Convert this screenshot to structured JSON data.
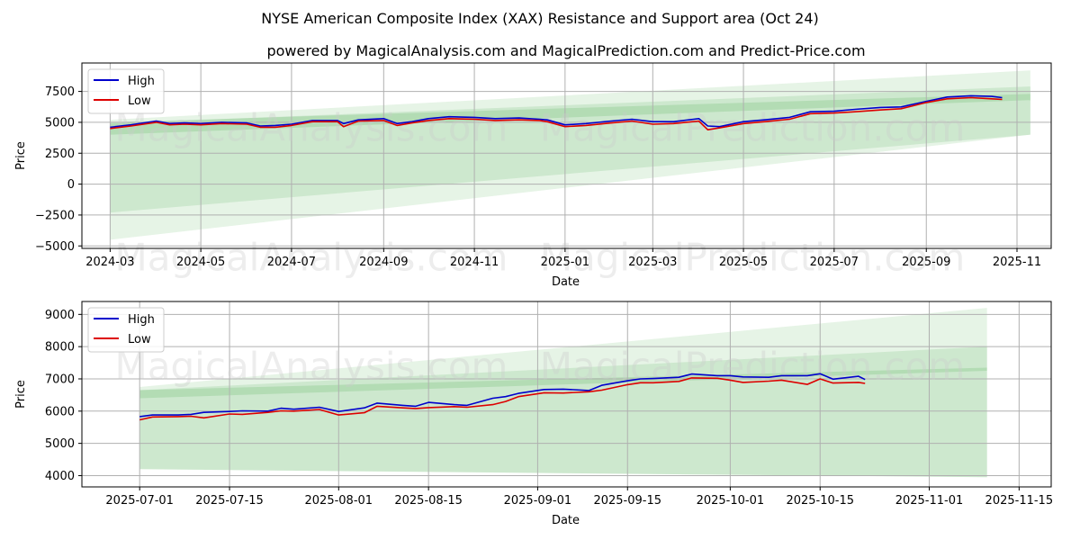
{
  "titles": {
    "main": "NYSE American Composite Index (XAX) Resistance and Support area (Oct 24)",
    "sub": "powered by MagicalAnalysis.com and MagicalPrediction.com and Predict-Price.com"
  },
  "watermarks": [
    "MagicalAnalysis.com",
    "MagicalPrediction.com"
  ],
  "colors": {
    "high": "#0000cc",
    "low": "#dd0000",
    "band": "#4caf50",
    "grid": "#b0b0b0"
  },
  "chart_data": [
    {
      "type": "line",
      "panel": "full-range",
      "xlabel": "Date",
      "ylabel": "Price",
      "xlim": [
        "2024-02-11",
        "2025-11-24"
      ],
      "ylim": [
        -5200,
        9800
      ],
      "x_ticks": [
        "2024-03-01",
        "2024-05-01",
        "2024-07-01",
        "2024-09-01",
        "2024-11-01",
        "2025-01-01",
        "2025-03-01",
        "2025-05-01",
        "2025-07-01",
        "2025-09-01",
        "2025-11-01"
      ],
      "x_tick_labels": [
        "2024-03",
        "2024-05",
        "2024-07",
        "2024-09",
        "2024-11",
        "2025-01",
        "2025-03",
        "2025-05",
        "2025-07",
        "2025-09",
        "2025-11"
      ],
      "y_ticks": [
        -5000,
        -2500,
        0,
        2500,
        5000,
        7500
      ],
      "y_tick_labels": [
        "−5000",
        "−2500",
        "0",
        "2500",
        "5000",
        "7500"
      ],
      "legend": {
        "position": "top-left",
        "entries": [
          "High",
          "Low"
        ]
      },
      "dates": [
        "2024-03-01",
        "2024-03-15",
        "2024-04-01",
        "2024-04-10",
        "2024-04-20",
        "2024-05-01",
        "2024-05-15",
        "2024-06-01",
        "2024-06-10",
        "2024-06-20",
        "2024-07-01",
        "2024-07-15",
        "2024-08-01",
        "2024-08-05",
        "2024-08-15",
        "2024-09-01",
        "2024-09-10",
        "2024-09-20",
        "2024-10-01",
        "2024-10-15",
        "2024-11-01",
        "2024-11-15",
        "2024-12-01",
        "2024-12-15",
        "2024-12-20",
        "2025-01-01",
        "2025-01-15",
        "2025-02-01",
        "2025-02-15",
        "2025-03-01",
        "2025-03-15",
        "2025-04-01",
        "2025-04-07",
        "2025-04-15",
        "2025-05-01",
        "2025-05-15",
        "2025-06-01",
        "2025-06-15",
        "2025-07-01",
        "2025-07-15",
        "2025-08-01",
        "2025-08-15",
        "2025-09-01",
        "2025-09-15",
        "2025-10-01",
        "2025-10-15",
        "2025-10-22"
      ],
      "series": [
        {
          "name": "High",
          "values": [
            4600,
            4800,
            5100,
            4900,
            4950,
            4900,
            5000,
            4950,
            4700,
            4750,
            4850,
            5150,
            5150,
            4900,
            5200,
            5300,
            4900,
            5050,
            5300,
            5450,
            5400,
            5300,
            5350,
            5250,
            5200,
            4800,
            4900,
            5100,
            5250,
            5050,
            5050,
            5300,
            4700,
            4650,
            5050,
            5200,
            5400,
            5850,
            5900,
            6050,
            6200,
            6250,
            6700,
            7050,
            7150,
            7100,
            7000
          ]
        },
        {
          "name": "Low",
          "values": [
            4500,
            4700,
            5000,
            4800,
            4850,
            4800,
            4900,
            4850,
            4600,
            4600,
            4750,
            5050,
            5050,
            4650,
            5100,
            5150,
            4750,
            4950,
            5150,
            5300,
            5250,
            5150,
            5200,
            5150,
            5050,
            4650,
            4750,
            4950,
            5100,
            4850,
            4900,
            5100,
            4400,
            4550,
            4900,
            5050,
            5250,
            5700,
            5750,
            5850,
            6000,
            6100,
            6600,
            6900,
            7000,
            6900,
            6850
          ]
        }
      ],
      "bands": [
        {
          "name": "resistance-support-outer",
          "start_date": "2024-03-01",
          "end_date": "2025-11-10",
          "start_range": [
            -4500,
            5200
          ],
          "end_range": [
            4000,
            9200
          ]
        },
        {
          "name": "resistance-support-inner",
          "start_date": "2024-03-01",
          "end_date": "2025-11-10",
          "start_range": [
            -2300,
            4900
          ],
          "end_range": [
            4000,
            7900
          ]
        },
        {
          "name": "resistance-support-core",
          "start_date": "2024-03-01",
          "end_date": "2025-11-10",
          "start_range": [
            4000,
            5000
          ],
          "end_range": [
            6800,
            7300
          ]
        }
      ]
    },
    {
      "type": "line",
      "panel": "zoomed",
      "xlabel": "Date",
      "ylabel": "Price",
      "xlim": [
        "2025-06-22",
        "2025-11-20"
      ],
      "ylim": [
        3650,
        9400
      ],
      "x_ticks": [
        "2025-07-01",
        "2025-07-15",
        "2025-08-01",
        "2025-08-15",
        "2025-09-01",
        "2025-09-15",
        "2025-10-01",
        "2025-10-15",
        "2025-11-01",
        "2025-11-15"
      ],
      "x_tick_labels": [
        "2025-07-01",
        "2025-07-15",
        "2025-08-01",
        "2025-08-15",
        "2025-09-01",
        "2025-09-15",
        "2025-10-01",
        "2025-10-15",
        "2025-11-01",
        "2025-11-15"
      ],
      "y_ticks": [
        4000,
        5000,
        6000,
        7000,
        8000,
        9000
      ],
      "y_tick_labels": [
        "4000",
        "5000",
        "6000",
        "7000",
        "8000",
        "9000"
      ],
      "legend": {
        "position": "top-left",
        "entries": [
          "High",
          "Low"
        ]
      },
      "dates": [
        "2025-07-01",
        "2025-07-03",
        "2025-07-07",
        "2025-07-09",
        "2025-07-11",
        "2025-07-15",
        "2025-07-17",
        "2025-07-21",
        "2025-07-23",
        "2025-07-25",
        "2025-07-29",
        "2025-08-01",
        "2025-08-05",
        "2025-08-07",
        "2025-08-11",
        "2025-08-13",
        "2025-08-15",
        "2025-08-19",
        "2025-08-21",
        "2025-08-25",
        "2025-08-27",
        "2025-08-29",
        "2025-09-02",
        "2025-09-05",
        "2025-09-09",
        "2025-09-11",
        "2025-09-15",
        "2025-09-17",
        "2025-09-19",
        "2025-09-23",
        "2025-09-25",
        "2025-09-29",
        "2025-10-01",
        "2025-10-03",
        "2025-10-07",
        "2025-10-09",
        "2025-10-13",
        "2025-10-15",
        "2025-10-17",
        "2025-10-21",
        "2025-10-22"
      ],
      "series": [
        {
          "name": "High",
          "values": [
            5830,
            5880,
            5880,
            5900,
            5960,
            5990,
            6010,
            6000,
            6090,
            6060,
            6120,
            5990,
            6100,
            6250,
            6180,
            6150,
            6270,
            6200,
            6180,
            6400,
            6450,
            6550,
            6670,
            6680,
            6640,
            6800,
            6940,
            7000,
            7010,
            7050,
            7150,
            7100,
            7100,
            7060,
            7050,
            7100,
            7100,
            7160,
            6990,
            7080,
            6980
          ]
        },
        {
          "name": "Low",
          "values": [
            5730,
            5820,
            5830,
            5840,
            5790,
            5910,
            5900,
            5960,
            6010,
            6000,
            6050,
            5880,
            5950,
            6150,
            6100,
            6080,
            6110,
            6140,
            6120,
            6200,
            6300,
            6450,
            6570,
            6560,
            6600,
            6650,
            6820,
            6880,
            6880,
            6920,
            7030,
            7020,
            6960,
            6890,
            6930,
            6960,
            6830,
            7000,
            6870,
            6890,
            6860
          ]
        }
      ],
      "bands": [
        {
          "name": "resistance-support-outer",
          "start_date": "2025-07-01",
          "end_date": "2025-11-10",
          "start_range": [
            4200,
            6750
          ],
          "end_range": [
            3950,
            9200
          ]
        },
        {
          "name": "resistance-support-inner",
          "start_date": "2025-07-01",
          "end_date": "2025-11-10",
          "start_range": [
            4200,
            6650
          ],
          "end_range": [
            3950,
            8000
          ]
        },
        {
          "name": "resistance-support-core",
          "start_date": "2025-07-01",
          "end_date": "2025-11-10",
          "start_range": [
            6400,
            6650
          ],
          "end_range": [
            7250,
            7350
          ]
        }
      ]
    }
  ]
}
